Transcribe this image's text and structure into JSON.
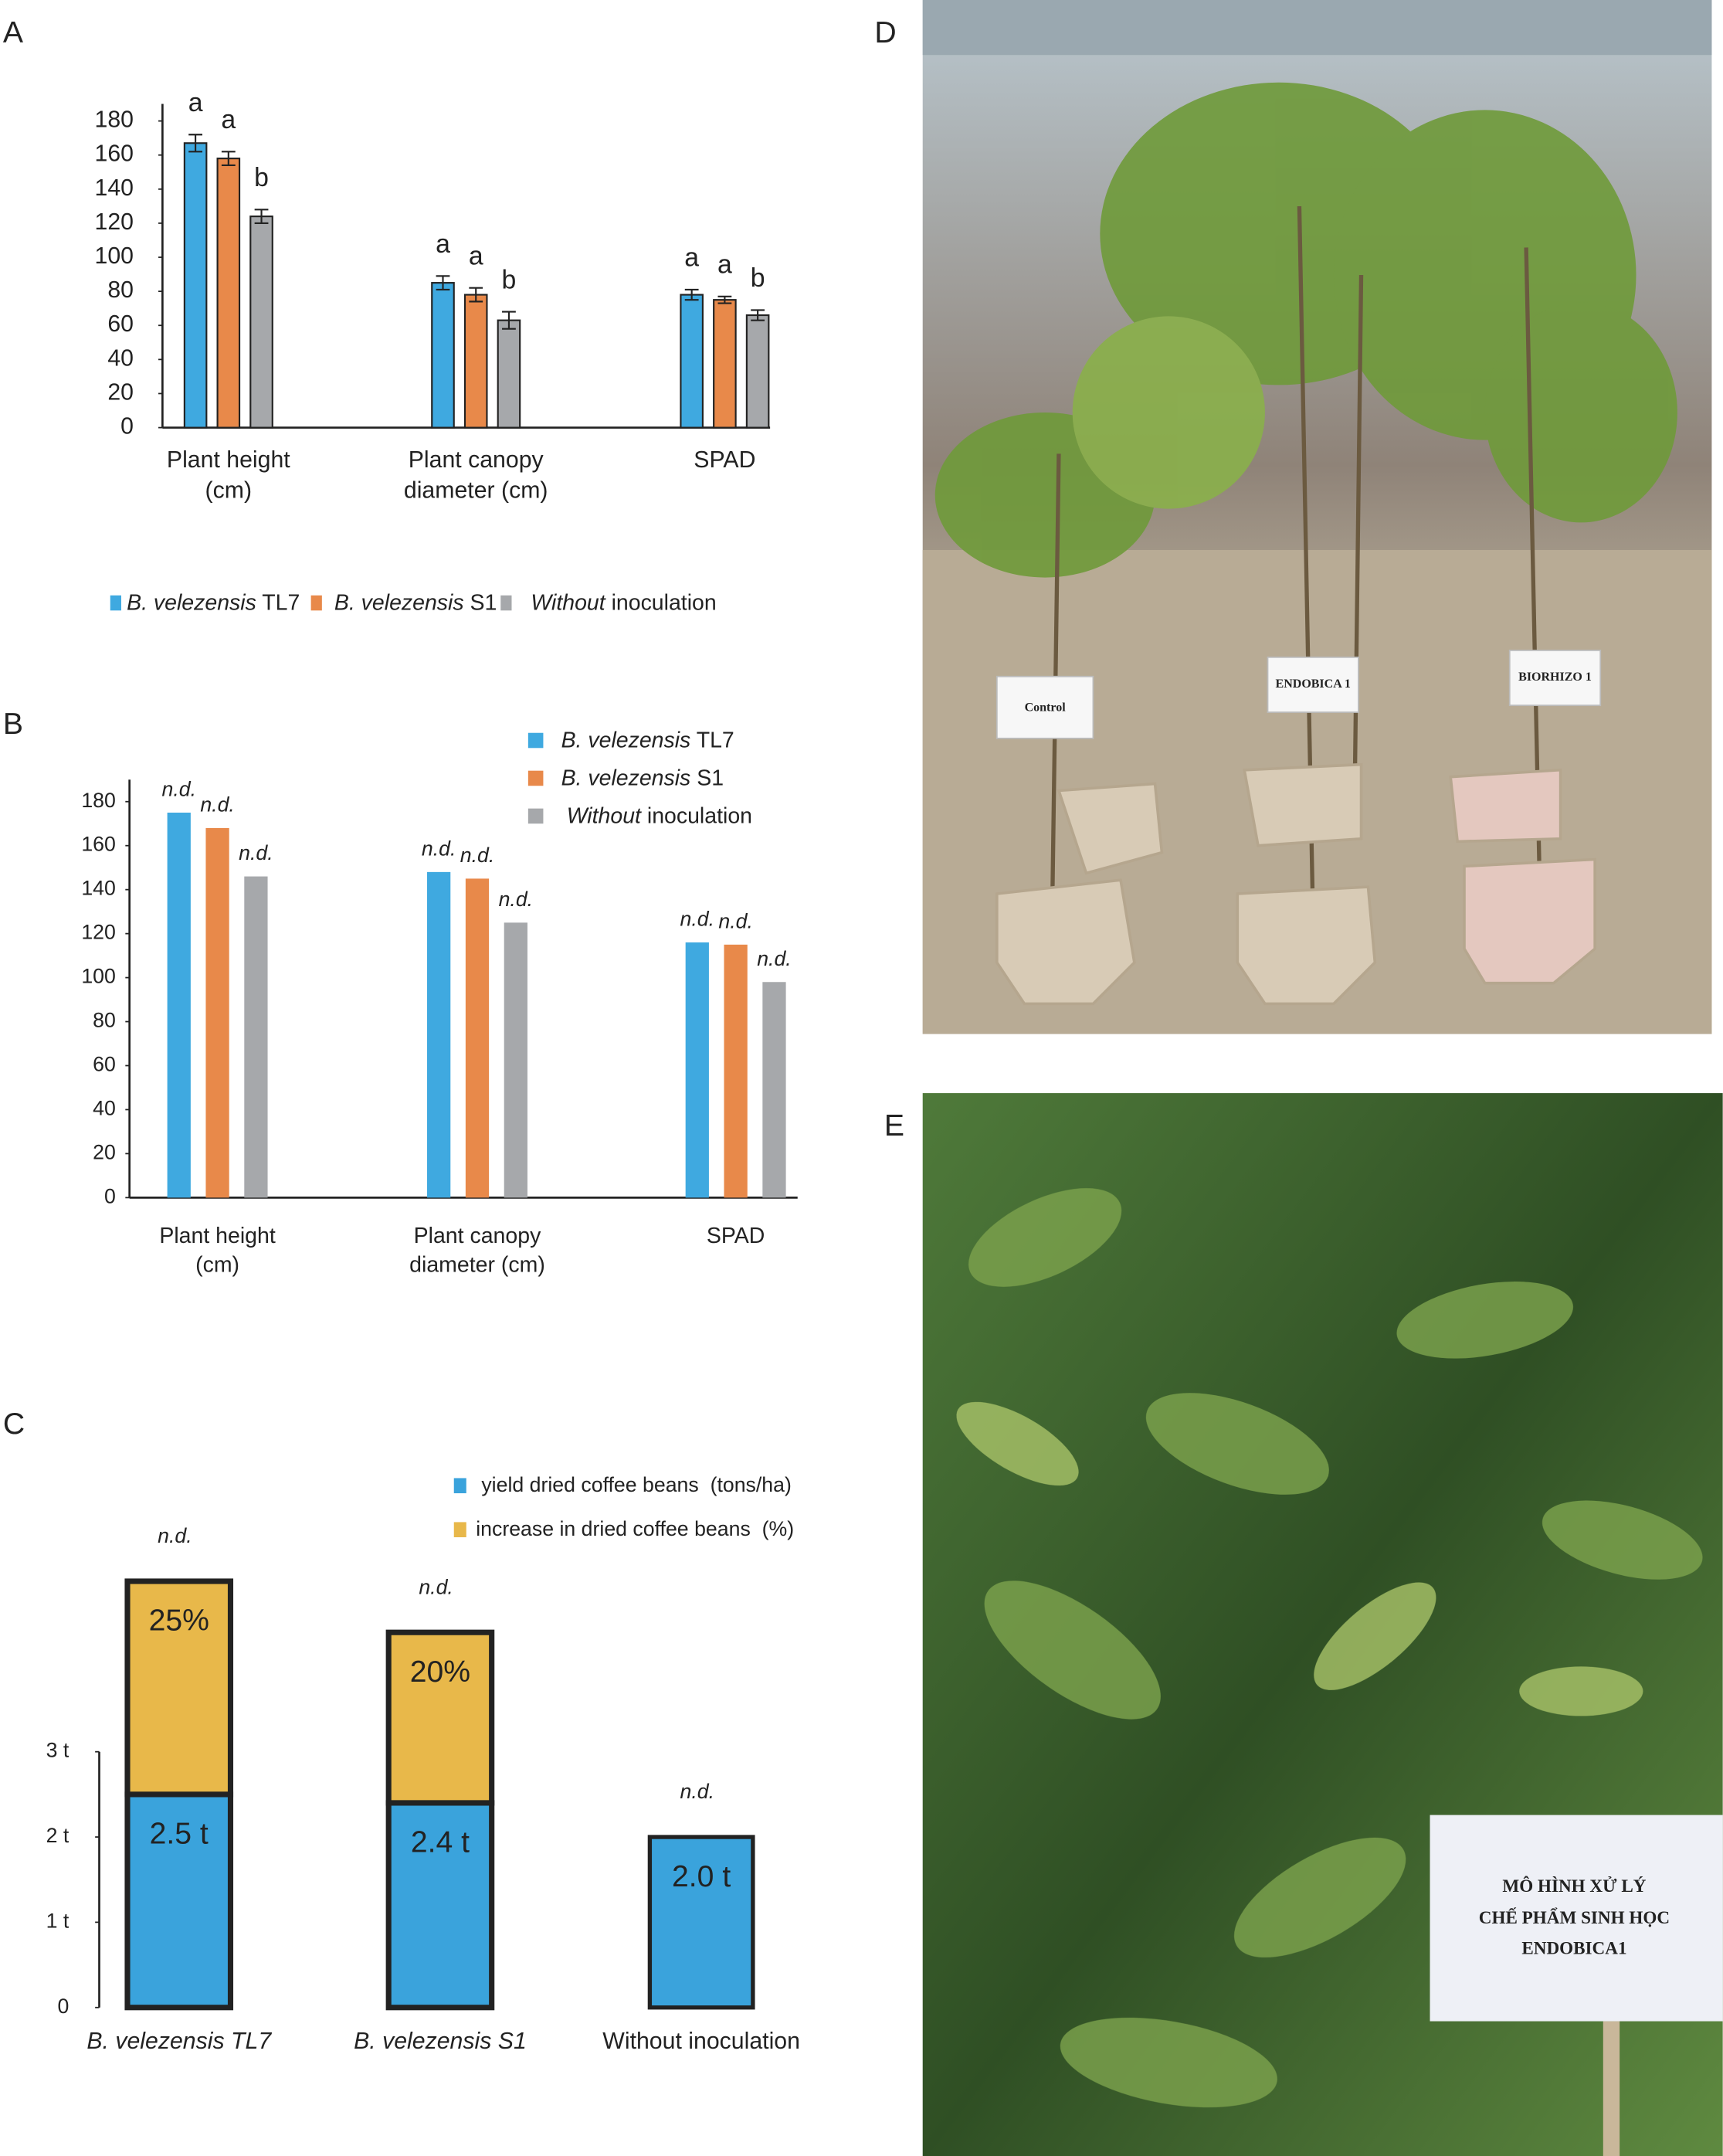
{
  "panels": [
    "A",
    "B",
    "C",
    "D",
    "E"
  ],
  "photos": {
    "D": {
      "signs": [
        "Control",
        "ENDOBICA 1",
        "BIORHIZO 1"
      ]
    },
    "E": {
      "sign_lines": [
        "MÔ HÌNH XỬ LÝ",
        "CHẾ PHẨM SINH HỌC",
        "ENDOBICA1"
      ]
    }
  },
  "chart_data": [
    {
      "type": "bar",
      "categories": [
        "Plant height (cm)",
        "Plant canopy diameter (cm)",
        "SPAD"
      ],
      "series": [
        {
          "name": "B. velezensis TL7",
          "color": "#3fa9e0",
          "values": [
            167,
            85,
            78
          ],
          "errors": [
            5,
            4,
            3
          ],
          "labels": [
            "a",
            "a",
            "a"
          ]
        },
        {
          "name": "B. velezensis S1",
          "color": "#e8894a",
          "values": [
            158,
            78,
            75
          ],
          "errors": [
            4,
            4,
            2
          ],
          "labels": [
            "a",
            "a",
            "a"
          ]
        },
        {
          "name": "Without inoculation",
          "color": "#a6a8ab",
          "values": [
            124,
            63,
            66
          ],
          "errors": [
            4,
            5,
            3
          ],
          "labels": [
            "b",
            "b",
            "b"
          ]
        }
      ],
      "ylim": [
        0,
        190
      ],
      "yticks": [
        0,
        20,
        40,
        60,
        80,
        100,
        120,
        140,
        160,
        180
      ],
      "legend": "bottom"
    },
    {
      "type": "bar",
      "categories": [
        "Plant height (cm)",
        "Plant canopy diameter (cm)",
        "SPAD"
      ],
      "series": [
        {
          "name": "B. velezensis TL7",
          "color": "#3fa9e0",
          "values": [
            175,
            148,
            116
          ],
          "labels": [
            "n.d.",
            "n.d.",
            "n.d."
          ]
        },
        {
          "name": "B. velezensis S1",
          "color": "#e8894a",
          "values": [
            168,
            145,
            115
          ],
          "labels": [
            "n.d.",
            "n.d.",
            "n.d."
          ]
        },
        {
          "name": "Without inoculation",
          "color": "#a6a8ab",
          "values": [
            146,
            125,
            98
          ],
          "labels": [
            "n.d.",
            "n.d.",
            "n.d."
          ]
        }
      ],
      "ylim": [
        0,
        190
      ],
      "yticks": [
        0,
        20,
        40,
        60,
        80,
        100,
        120,
        140,
        160,
        180
      ],
      "legend": "top right"
    },
    {
      "type": "stacked_bar",
      "categories": [
        "B. velezensis TL7",
        "B. velezensis S1",
        "Without inoculation"
      ],
      "series": [
        {
          "name": "yield dried coffee beans  (tons/ha)",
          "color": "#3aa3dc",
          "values": [
            2.5,
            2.4,
            2.0
          ],
          "value_labels": [
            "2.5 t",
            "2.4 t",
            "2.0 t"
          ]
        },
        {
          "name": "increase in dried coffee beans  (%)",
          "color": "#e8b84a",
          "values": [
            25,
            20,
            null
          ],
          "value_labels": [
            "25%",
            "20%",
            null
          ],
          "axis": "y2"
        }
      ],
      "labels": [
        "n.d.",
        "n.d.",
        "n.d."
      ],
      "ylim": [
        0,
        3
      ],
      "yticks": [
        0,
        {
          "value": 1,
          "label": "1 t"
        },
        {
          "value": 2,
          "label": "2 t"
        },
        {
          "value": 3,
          "label": "3 t"
        }
      ],
      "y2lim": [
        0,
        30
      ],
      "legend": "top right"
    }
  ]
}
